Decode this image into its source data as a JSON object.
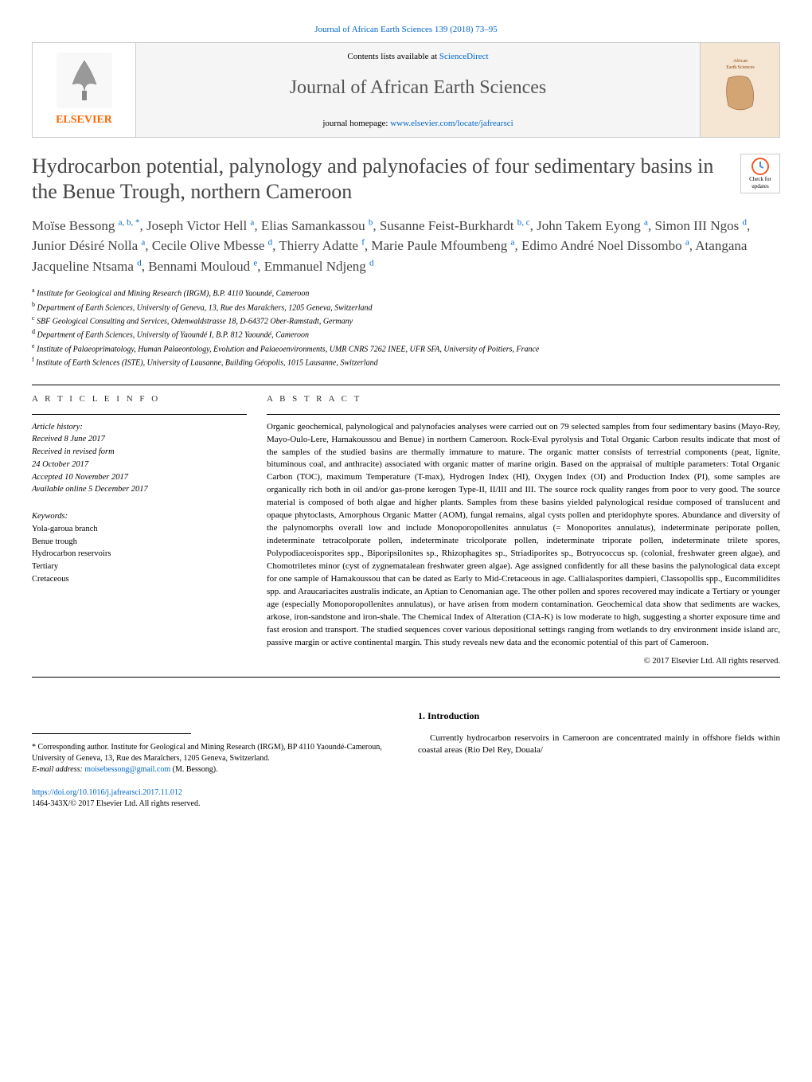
{
  "header": {
    "citation_link": "Journal of African Earth Sciences 139 (2018) 73–95",
    "contents_prefix": "Contents lists available at ",
    "contents_link": "ScienceDirect",
    "journal_name": "Journal of African Earth Sciences",
    "homepage_prefix": "journal homepage: ",
    "homepage_link": "www.elsevier.com/locate/jafrearsci",
    "elsevier_label": "ELSEVIER",
    "cover_text": "African Earth Sciences",
    "check_updates": "Check for updates"
  },
  "article": {
    "title": "Hydrocarbon potential, palynology and palynofacies of four sedimentary basins in the Benue Trough, northern Cameroon",
    "authors_html": "Moïse Bessong <sup>a, b, *</sup>, Joseph Victor Hell <sup>a</sup>, Elias Samankassou <sup>b</sup>, Susanne Feist-Burkhardt <sup>b, c</sup>, John Takem Eyong <sup>a</sup>, Simon III Ngos <sup>d</sup>, Junior Désiré Nolla <sup>a</sup>, Cecile Olive Mbesse <sup>d</sup>, Thierry Adatte <sup>f</sup>, Marie Paule Mfoumbeng <sup>a</sup>, Edimo André Noel Dissombo <sup>a</sup>, Atangana Jacqueline Ntsama <sup>d</sup>, Bennami Mouloud <sup>e</sup>, Emmanuel Ndjeng <sup>d</sup>",
    "affiliations": [
      {
        "sup": "a",
        "text": "Institute for Geological and Mining Research (IRGM), B.P. 4110 Yaoundé, Cameroon"
      },
      {
        "sup": "b",
        "text": "Department of Earth Sciences, University of Geneva, 13, Rue des Maraîchers, 1205 Geneva, Switzerland"
      },
      {
        "sup": "c",
        "text": "SBF Geological Consulting and Services, Odenwaldstrasse 18, D-64372 Ober-Ramstadt, Germany"
      },
      {
        "sup": "d",
        "text": "Department of Earth Sciences, University of Yaoundé I, B.P. 812 Yaoundé, Cameroon"
      },
      {
        "sup": "e",
        "text": "Institute of Palaeoprimatology, Human Palaeontology, Evolution and Palaeoenvironments, UMR CNRS 7262 INEE, UFR SFA, University of Poitiers, France"
      },
      {
        "sup": "f",
        "text": "Institute of Earth Sciences (ISTE), University of Lausanne, Building Géopolis, 1015 Lausanne, Switzerland"
      }
    ]
  },
  "info": {
    "heading": "A R T I C L E  I N F O",
    "history_label": "Article history:",
    "history": [
      "Received 8 June 2017",
      "Received in revised form",
      "24 October 2017",
      "Accepted 10 November 2017",
      "Available online 5 December 2017"
    ],
    "keywords_label": "Keywords:",
    "keywords": [
      "Yola-garoua branch",
      "Benue trough",
      "Hydrocarbon reservoirs",
      "Tertiary",
      "Cretaceous"
    ]
  },
  "abstract": {
    "heading": "A B S T R A C T",
    "text": "Organic geochemical, palynological and palynofacies analyses were carried out on 79 selected samples from four sedimentary basins (Mayo-Rey, Mayo-Oulo-Lere, Hamakoussou and Benue) in northern Cameroon. Rock-Eval pyrolysis and Total Organic Carbon results indicate that most of the samples of the studied basins are thermally immature to mature. The organic matter consists of terrestrial components (peat, lignite, bituminous coal, and anthracite) associated with organic matter of marine origin. Based on the appraisal of multiple parameters: Total Organic Carbon (TOC), maximum Temperature (T-max), Hydrogen Index (HI), Oxygen Index (OI) and Production Index (PI), some samples are organically rich both in oil and/or gas-prone kerogen Type-II, II/III and III. The source rock quality ranges from poor to very good. The source material is composed of both algae and higher plants. Samples from these basins yielded palynological residue composed of translucent and opaque phytoclasts, Amorphous Organic Matter (AOM), fungal remains, algal cysts pollen and pteridophyte spores. Abundance and diversity of the palynomorphs overall low and include Monoporopollenites annulatus (= Monoporites annulatus), indeterminate periporate pollen, indeterminate tetracolporate pollen, indeterminate tricolporate pollen, indeterminate triporate pollen, indeterminate trilete spores, Polypodiaceoisporites spp., Biporipsilonites sp., Rhizophagites sp., Striadiporites sp., Botryococcus sp. (colonial, freshwater green algae), and Chomotriletes minor (cyst of zygnematalean freshwater green algae). Age assigned confidently for all these basins the palynological data except for one sample of Hamakoussou that can be dated as Early to Mid-Cretaceous in age. Callialasporites dampieri, Classopollis spp., Eucommilidites spp. and Araucariacites australis indicate, an Aptian to Cenomanian age. The other pollen and spores recovered may indicate a Tertiary or younger age (especially Monoporopollenites annulatus), or have arisen from modern contamination. Geochemical data show that sediments are wackes, arkose, iron-sandstone and iron-shale. The Chemical Index of Alteration (CIA-K) is low moderate to high, suggesting a shorter exposure time and fast erosion and transport. The studied sequences cover various depositional settings ranging from wetlands to dry environment inside island arc, passive margin or active continental margin. This study reveals new data and the economic potential of this part of Cameroon.",
    "copyright": "© 2017 Elsevier Ltd. All rights reserved."
  },
  "footer": {
    "corresponding": "* Corresponding author. Institute for Geological and Mining Research (IRGM), BP 4110 Yaoundé-Cameroun, University of Geneva, 13, Rue des Maraîchers, 1205 Geneva, Switzerland.",
    "email_label": "E-mail address: ",
    "email": "moisebessong@gmail.com",
    "email_suffix": " (M. Bessong).",
    "doi_link": "https://doi.org/10.1016/j.jafrearsci.2017.11.012",
    "issn_line": "1464-343X/© 2017 Elsevier Ltd. All rights reserved."
  },
  "intro": {
    "heading": "1. Introduction",
    "text": "Currently hydrocarbon reservoirs in Cameroon are concentrated mainly in offshore fields within coastal areas (Rio Del Rey, Douala/"
  },
  "colors": {
    "link": "#0066cc",
    "elsevier_orange": "#ff6600",
    "text_gray": "#444444",
    "border": "#cccccc"
  }
}
